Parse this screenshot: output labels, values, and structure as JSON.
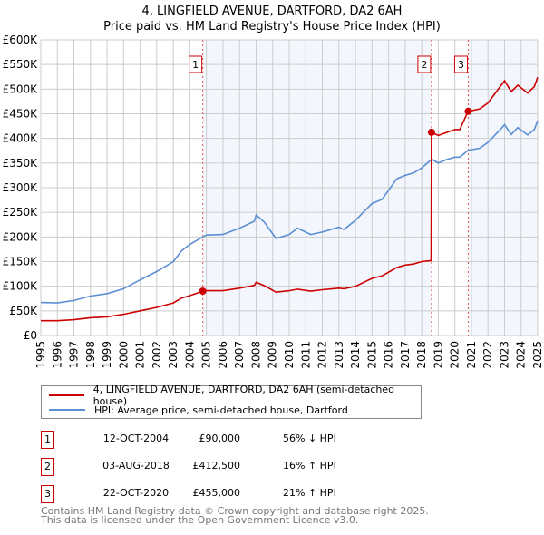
{
  "chart_data": {
    "type": "line",
    "title": "4, LINGFIELD AVENUE, DARTFORD, DA2 6AH",
    "subtitle": "Price paid vs. HM Land Registry's House Price Index (HPI)",
    "xlim": [
      1995,
      2025
    ],
    "ylim": [
      0,
      600000
    ],
    "x_ticks": [
      "1995",
      "1996",
      "1997",
      "1998",
      "1999",
      "2000",
      "2001",
      "2002",
      "2003",
      "2004",
      "2005",
      "2006",
      "2007",
      "2008",
      "2009",
      "2010",
      "2011",
      "2012",
      "2013",
      "2014",
      "2015",
      "2016",
      "2017",
      "2018",
      "2019",
      "2020",
      "2021",
      "2022",
      "2023",
      "2024",
      "2025"
    ],
    "y_ticks": [
      {
        "value": 0,
        "label": "£0"
      },
      {
        "value": 50000,
        "label": "£50K"
      },
      {
        "value": 100000,
        "label": "£100K"
      },
      {
        "value": 150000,
        "label": "£150K"
      },
      {
        "value": 200000,
        "label": "£200K"
      },
      {
        "value": 250000,
        "label": "£250K"
      },
      {
        "value": 300000,
        "label": "£300K"
      },
      {
        "value": 350000,
        "label": "£350K"
      },
      {
        "value": 400000,
        "label": "£400K"
      },
      {
        "value": 450000,
        "label": "£450K"
      },
      {
        "value": 500000,
        "label": "£500K"
      },
      {
        "value": 550000,
        "label": "£550K"
      },
      {
        "value": 600000,
        "label": "£600K"
      }
    ],
    "grid": true,
    "series": [
      {
        "name": "4, LINGFIELD AVENUE, DARTFORD, DA2 6AH (semi-detached house)",
        "color": "#cc0000",
        "x": [
          1995,
          1996,
          1997,
          1998,
          1999,
          2000,
          2001,
          2002,
          2003,
          2003.5,
          2004,
          2004.78,
          2005,
          2006,
          2007,
          2007.9,
          2008,
          2008.5,
          2009.2,
          2010,
          2010.5,
          2011.3,
          2012,
          2013,
          2013.3,
          2014,
          2015,
          2015.6,
          2016.5,
          2017,
          2017.5,
          2018,
          2018.57,
          2018.59,
          2019,
          2019.5,
          2020,
          2020.3,
          2020.8,
          2021.5,
          2022,
          2022.8,
          2023,
          2023.4,
          2023.8,
          2024.4,
          2024.8,
          2025
        ],
        "y": [
          30000,
          30000,
          32000,
          36000,
          38000,
          43000,
          50000,
          57000,
          66000,
          76000,
          81000,
          90000,
          91000,
          91000,
          96000,
          102000,
          108000,
          101000,
          88000,
          91000,
          94000,
          90000,
          93000,
          96000,
          95000,
          100000,
          116000,
          121000,
          138000,
          143000,
          145000,
          150000,
          152000,
          412500,
          406000,
          412000,
          418000,
          418000,
          455000,
          460000,
          472000,
          508000,
          517000,
          495000,
          508000,
          492000,
          505000,
          524000
        ]
      },
      {
        "name": "HPI: Average price, semi-detached house, Dartford",
        "color": "#5b8fd4",
        "x": [
          1995,
          1996,
          1997,
          1998,
          1999,
          2000,
          2001,
          2002,
          2003,
          2003.5,
          2004,
          2004.78,
          2005,
          2006,
          2007,
          2007.9,
          2008,
          2008.5,
          2009.2,
          2010,
          2010.5,
          2011.3,
          2012,
          2013,
          2013.3,
          2014,
          2015,
          2015.6,
          2016.5,
          2017,
          2017.5,
          2018,
          2018.6,
          2019,
          2019.5,
          2020,
          2020.3,
          2020.8,
          2021.5,
          2022,
          2022.8,
          2023,
          2023.4,
          2023.8,
          2024.4,
          2024.8,
          2025
        ],
        "y": [
          67000,
          66000,
          71000,
          80000,
          85000,
          95000,
          113000,
          130000,
          150000,
          172000,
          185000,
          200000,
          204000,
          205000,
          218000,
          232000,
          245000,
          230000,
          197000,
          205000,
          218000,
          205000,
          210000,
          220000,
          215000,
          234000,
          268000,
          276000,
          318000,
          325000,
          330000,
          340000,
          358000,
          350000,
          357000,
          362000,
          362000,
          376000,
          380000,
          392000,
          420000,
          428000,
          408000,
          422000,
          407000,
          418000,
          436000
        ]
      }
    ],
    "sales": [
      {
        "label": "1",
        "x": 2004.78,
        "y": 90000,
        "date": "12-OCT-2004",
        "price": "£90,000",
        "hpi": "56% ↓ HPI"
      },
      {
        "label": "2",
        "x": 2018.59,
        "y": 412500,
        "date": "03-AUG-2018",
        "price": "£412,500",
        "hpi": "16% ↑ HPI"
      },
      {
        "label": "3",
        "x": 2020.81,
        "y": 455000,
        "date": "22-OCT-2020",
        "price": "£455,000",
        "hpi": "21% ↑ HPI"
      }
    ],
    "legend_position": "bottom"
  },
  "footer": {
    "line1": "Contains HM Land Registry data © Crown copyright and database right 2025.",
    "line2": "This data is licensed under the Open Government Licence v3.0."
  }
}
